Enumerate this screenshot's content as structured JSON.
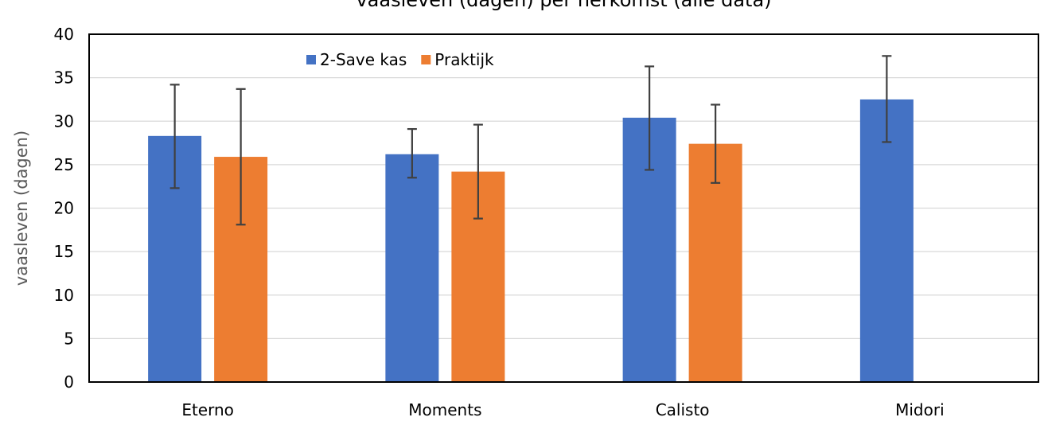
{
  "chart_data": {
    "type": "bar",
    "title": "vaasleven (dagen) per herkomst (alle data)",
    "xlabel": "",
    "ylabel": "vaasleven (dagen)",
    "ylim": [
      0,
      40
    ],
    "yticks": [
      0,
      5,
      10,
      15,
      20,
      25,
      30,
      35,
      40
    ],
    "grid": true,
    "legend_position": "top-left inside",
    "categories": [
      "Eterno",
      "Moments",
      "Calisto",
      "Midori"
    ],
    "series": [
      {
        "name": "2-Save kas",
        "color": "#4472C4",
        "values": [
          28.3,
          26.2,
          30.4,
          32.5
        ],
        "error_low": [
          22.3,
          23.5,
          24.4,
          27.6
        ],
        "error_high": [
          34.2,
          29.1,
          36.3,
          37.5
        ]
      },
      {
        "name": "Praktijk",
        "color": "#ED7D31",
        "values": [
          25.9,
          24.2,
          27.4,
          null
        ],
        "error_low": [
          18.1,
          18.8,
          22.9,
          null
        ],
        "error_high": [
          33.7,
          29.6,
          31.9,
          null
        ]
      }
    ],
    "colors": {
      "grid": "#D9D9D9",
      "axis": "#000000",
      "error_bar": "#404040"
    }
  }
}
